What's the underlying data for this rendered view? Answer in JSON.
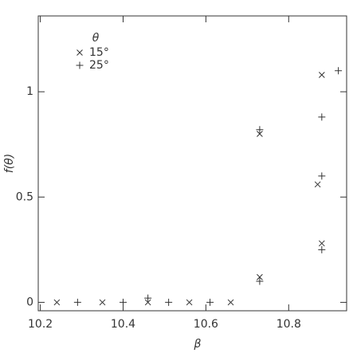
{
  "chart_data": {
    "type": "scatter",
    "x_label": "β",
    "y_label": "f(θ)",
    "legend_title": "θ",
    "legend": "upper left",
    "xlim": [
      10.195,
      10.94
    ],
    "ylim": [
      -0.04,
      1.36
    ],
    "xticks": [
      10.2,
      10.4,
      10.6,
      10.8
    ],
    "yticks": [
      0,
      0.5,
      1
    ],
    "series": [
      {
        "name": "15°",
        "marker": "x",
        "color": "#333333",
        "x": [
          10.24,
          10.35,
          10.46,
          10.56,
          10.66,
          10.73,
          10.73,
          10.87,
          10.88,
          10.88
        ],
        "values": [
          0,
          0,
          0,
          0,
          0,
          0.12,
          0.8,
          0.56,
          0.28,
          1.08
        ]
      },
      {
        "name": "25°",
        "marker": "+",
        "color": "#333333",
        "x": [
          10.29,
          10.4,
          10.46,
          10.51,
          10.61,
          10.73,
          10.73,
          10.88,
          10.88,
          10.88,
          10.92
        ],
        "values": [
          0,
          0,
          0.02,
          0,
          0,
          0.1,
          0.82,
          0.6,
          0.25,
          0.88,
          1.1
        ]
      }
    ]
  }
}
